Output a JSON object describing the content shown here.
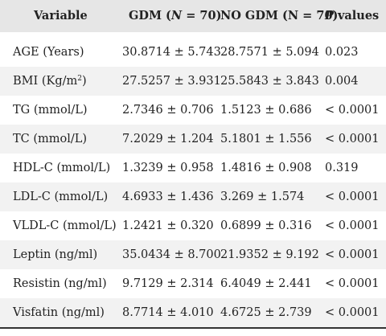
{
  "header": {
    "variable": "Variable",
    "gdm_prefix": "GDM (",
    "gdm_n": "N",
    "gdm_suffix": " = 70)",
    "nogdm": "NO GDM (N = 70)",
    "p_italic": "P",
    "p_suffix": " values"
  },
  "rows": [
    {
      "variable": "AGE (Years)",
      "gdm": "30.8714 ± 5.743",
      "nogdm": "28.7571 ± 5.094",
      "p": "0.023"
    },
    {
      "variable_prefix": "BMI (Kg/m",
      "variable_sup": "2",
      "variable_suffix": ")",
      "gdm": "27.5257 ± 3.931",
      "nogdm": "25.5843 ± 3.843",
      "p": "0.004"
    },
    {
      "variable": "TG (mmol/L)",
      "gdm": "2.7346 ± 0.706",
      "nogdm": "1.5123 ± 0.686",
      "p": "< 0.0001"
    },
    {
      "variable": "TC (mmol/L)",
      "gdm": "7.2029 ± 1.204",
      "nogdm": "5.1801 ± 1.556",
      "p": "< 0.0001"
    },
    {
      "variable": "HDL-C (mmol/L)",
      "gdm": "1.3239 ± 0.958",
      "nogdm": "1.4816 ± 0.908",
      "p": "0.319"
    },
    {
      "variable": "LDL-C (mmol/L)",
      "gdm": "4.6933 ± 1.436",
      "nogdm": "3.269 ± 1.574",
      "p": "< 0.0001"
    },
    {
      "variable": "VLDL-C (mmol/L)",
      "gdm": "1.2421 ± 0.320",
      "nogdm": "0.6899 ± 0.316",
      "p": "< 0.0001"
    },
    {
      "variable": "Leptin (ng/ml)",
      "gdm": "35.0434 ± 8.700",
      "nogdm": "21.9352 ± 9.192",
      "p": "< 0.0001"
    },
    {
      "variable": "Resistin (ng/ml)",
      "gdm": "9.7129 ± 2.314",
      "nogdm": "6.4049 ± 2.441",
      "p": "< 0.0001"
    },
    {
      "variable": "Visfatin (ng/ml)",
      "gdm": "8.7714 ± 4.010",
      "nogdm": "4.6725 ± 2.739",
      "p": "< 0.0001"
    }
  ]
}
